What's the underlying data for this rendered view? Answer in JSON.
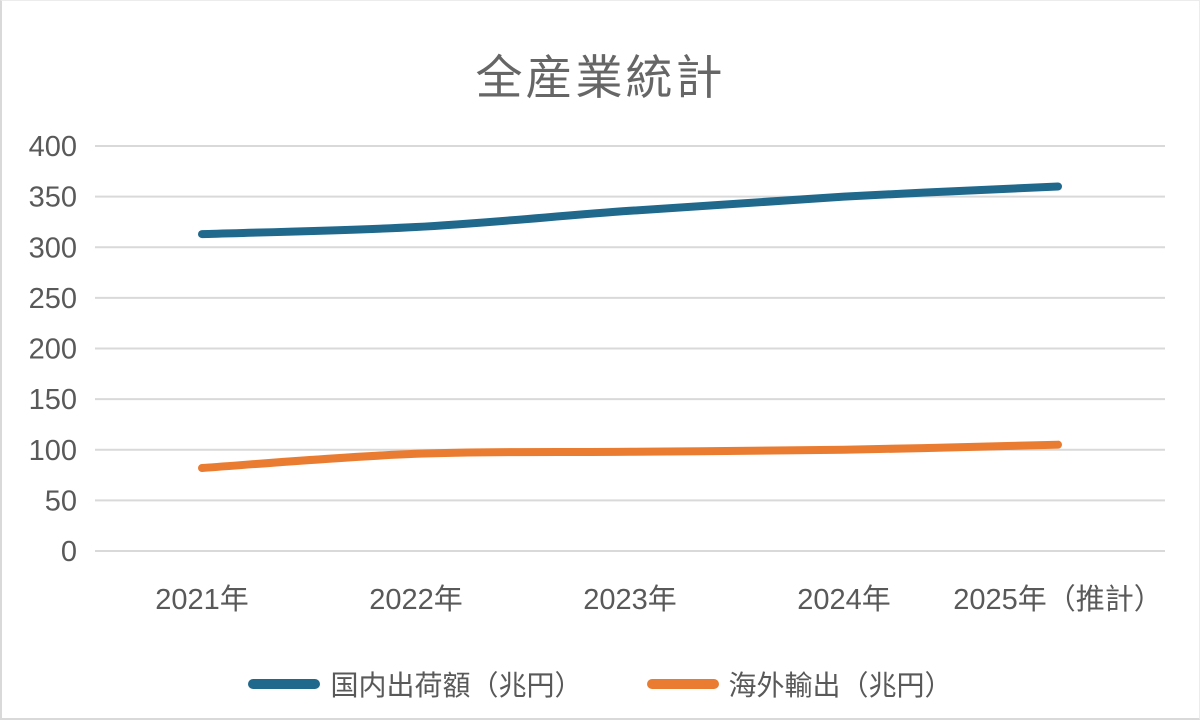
{
  "chart_data": {
    "type": "line",
    "title": "全産業統計",
    "categories": [
      "2021年",
      "2022年",
      "2023年",
      "2024年",
      "2025年（推計）"
    ],
    "series": [
      {
        "name": "国内出荷額（兆円）",
        "color": "#20698C",
        "values": [
          313,
          320,
          336,
          350,
          360
        ]
      },
      {
        "name": "海外輸出（兆円）",
        "color": "#E97C31",
        "values": [
          82,
          96,
          98,
          100,
          105
        ]
      }
    ],
    "ylim": [
      0,
      400
    ],
    "yticks": [
      0,
      50,
      100,
      150,
      200,
      250,
      300,
      350,
      400
    ],
    "grid": true,
    "smoothed": true,
    "legend_position": "bottom",
    "colors": {
      "grid": "#D9D9D9",
      "axis_text": "#595959",
      "title_text": "#666666",
      "background": "#FFFFFF",
      "border": "#D9D9D9"
    }
  }
}
